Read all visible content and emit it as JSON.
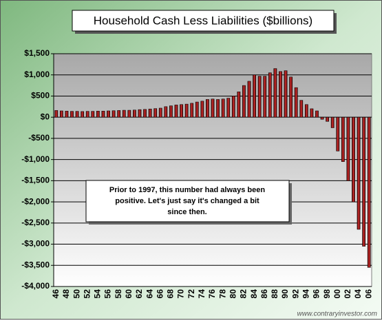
{
  "chart_data": {
    "type": "bar",
    "title": "Household Cash Less Liabilities ($billions)",
    "annotation": [
      "Prior to 1997, this number had always been",
      "positive.  Let's just say it's changed a bit",
      "since then."
    ],
    "source": "www.contraryinvestor.com",
    "color": "#8b0a0a",
    "grid": true,
    "categories": [
      "46",
      null,
      "48",
      null,
      "50",
      null,
      "52",
      null,
      "54",
      null,
      "56",
      null,
      "58",
      null,
      "60",
      null,
      "62",
      null,
      "64",
      null,
      "66",
      null,
      "68",
      null,
      "70",
      null,
      "72",
      null,
      "74",
      null,
      "76",
      null,
      "78",
      null,
      "80",
      null,
      "82",
      null,
      "84",
      null,
      "86",
      null,
      "88",
      null,
      "90",
      null,
      "92",
      null,
      "94",
      null,
      "96",
      null,
      "98",
      null,
      "00",
      null,
      "02",
      null,
      "04",
      null,
      "06"
    ],
    "values": [
      160,
      150,
      145,
      140,
      140,
      135,
      140,
      140,
      145,
      145,
      150,
      155,
      160,
      165,
      165,
      170,
      180,
      185,
      195,
      205,
      215,
      250,
      270,
      290,
      300,
      310,
      330,
      360,
      380,
      420,
      430,
      420,
      430,
      450,
      500,
      600,
      750,
      850,
      1000,
      970,
      970,
      1050,
      1150,
      1080,
      1100,
      950,
      700,
      400,
      300,
      200,
      150,
      -50,
      -100,
      -250,
      -800,
      -1050,
      -1500,
      -2000,
      -2650,
      -3050,
      -3550
    ],
    "ylim": [
      -4000,
      1500
    ],
    "yticks": [
      {
        "value": -4000,
        "label": "-$4,000"
      },
      {
        "value": -3500,
        "label": "-$3,500"
      },
      {
        "value": -3000,
        "label": "-$3,000"
      },
      {
        "value": -2500,
        "label": "-$2,500"
      },
      {
        "value": -2000,
        "label": "-$2,000"
      },
      {
        "value": -1500,
        "label": "-$1,500"
      },
      {
        "value": -1000,
        "label": "-$1,000"
      },
      {
        "value": -500,
        "label": "-$500"
      },
      {
        "value": 0,
        "label": "$0"
      },
      {
        "value": 500,
        "label": "$500"
      },
      {
        "value": 1000,
        "label": "$1,000"
      },
      {
        "value": 1500,
        "label": "$1,500"
      }
    ]
  }
}
